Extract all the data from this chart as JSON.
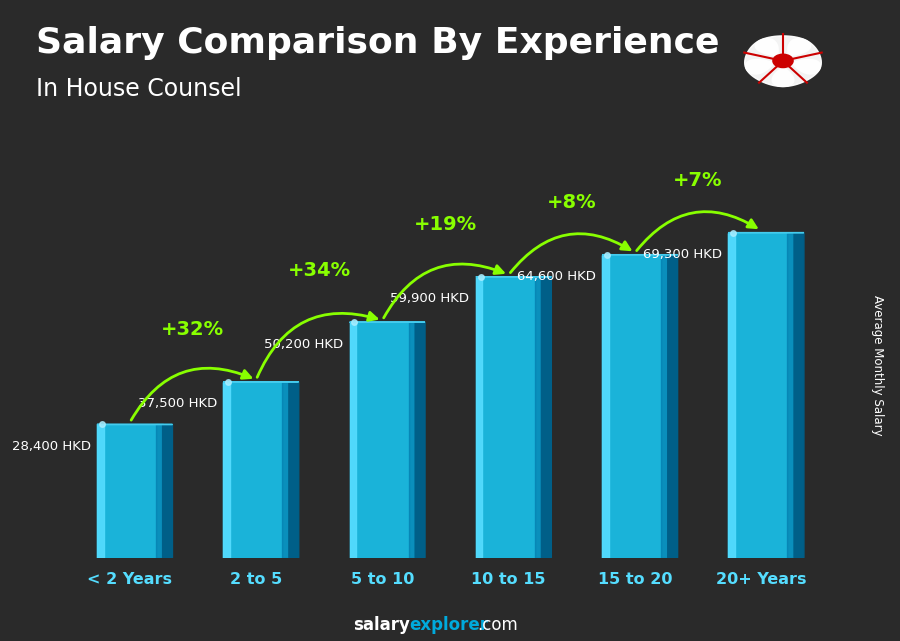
{
  "title": "Salary Comparison By Experience",
  "subtitle": "In House Counsel",
  "categories": [
    "< 2 Years",
    "2 to 5",
    "5 to 10",
    "10 to 15",
    "15 to 20",
    "20+ Years"
  ],
  "values": [
    28400,
    37500,
    50200,
    59900,
    64600,
    69300
  ],
  "value_labels": [
    "28,400 HKD",
    "37,500 HKD",
    "50,200 HKD",
    "59,900 HKD",
    "64,600 HKD",
    "69,300 HKD"
  ],
  "pct_changes": [
    null,
    "+32%",
    "+34%",
    "+19%",
    "+8%",
    "+7%"
  ],
  "bar_face_color": "#1ab3d9",
  "bar_highlight_color": "#55ddff",
  "bar_shadow_color": "#0077aa",
  "bar_right_color": "#005f88",
  "bar_top_color": "#44ccee",
  "bg_color": "#2a2a2a",
  "text_color": "#ffffff",
  "pct_color": "#88ff00",
  "value_color": "#ffffff",
  "ylabel": "Average Monthly Salary",
  "title_fontsize": 26,
  "subtitle_fontsize": 17,
  "ylim": [
    0,
    82000
  ],
  "bar_width": 0.52,
  "footer_salary_color": "#ffffff",
  "footer_explorer_color": "#00aadd",
  "footer_com_color": "#ffffff"
}
